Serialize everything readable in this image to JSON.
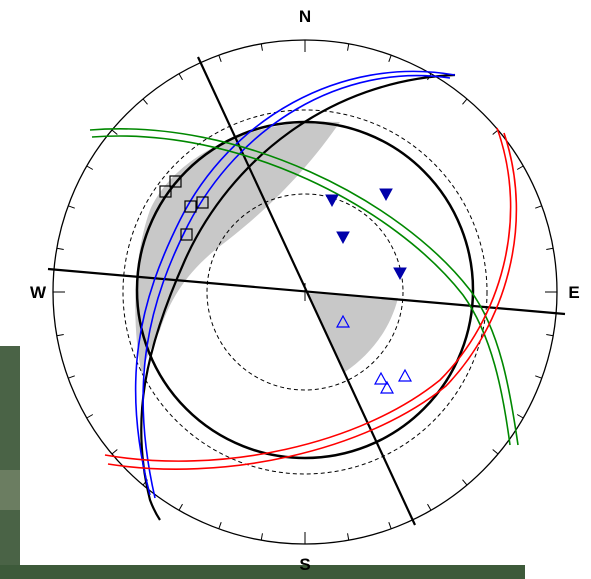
{
  "compass": {
    "north": "N",
    "south": "S",
    "east": "E",
    "west": "W"
  },
  "colors": {
    "primitive": "#000000",
    "shaded_region": "#c8c8c8",
    "blue_planes": "#0000ff",
    "green_planes": "#008800",
    "red_planes": "#ff0000",
    "poles": "#0000aa",
    "background_photo": "#3d5a3a"
  },
  "symbols": {
    "squares": "open-square-marker",
    "filled_triangles": "filled-down-triangle-marker",
    "open_triangles": "open-up-triangle-marker"
  }
}
